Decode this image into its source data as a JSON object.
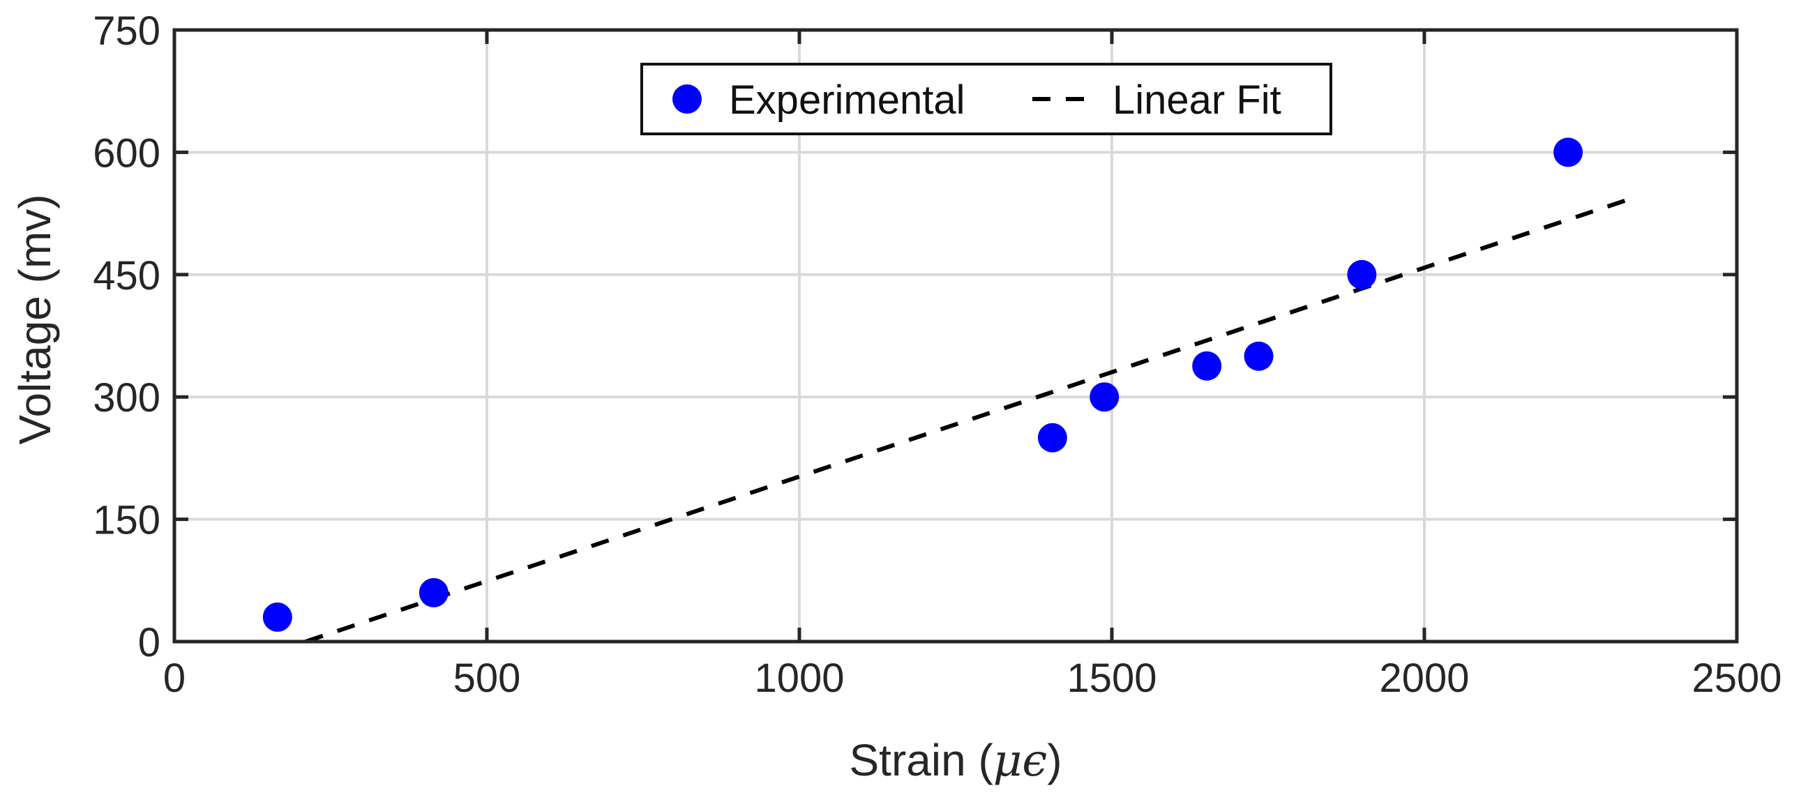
{
  "chart_data": {
    "type": "scatter",
    "title": "",
    "xlabel": "Strain (",
    "xlabel_symbol": "μϵ",
    "xlabel_close": ")",
    "ylabel": "Voltage (mv)",
    "xlim": [
      0,
      2500
    ],
    "ylim": [
      0,
      750
    ],
    "xticks": [
      0,
      500,
      1000,
      1500,
      2000,
      2500
    ],
    "yticks": [
      0,
      150,
      300,
      450,
      600,
      750
    ],
    "grid": true,
    "legend_position": "top-center",
    "series": [
      {
        "name": "Experimental",
        "kind": "markers",
        "color": "#0000ff",
        "x": [
          165,
          415,
          1405,
          1488,
          1652,
          1735,
          1900,
          2230
        ],
        "y": [
          30,
          60,
          250,
          300,
          338,
          350,
          450,
          600
        ]
      },
      {
        "name": "Linear Fit",
        "kind": "dashed-line",
        "color": "#000000",
        "x": [
          210,
          2330
        ],
        "y": [
          0,
          543
        ]
      }
    ]
  }
}
